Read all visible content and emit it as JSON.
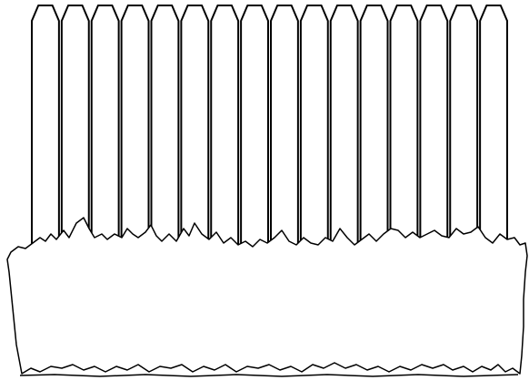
{
  "scene": {
    "subject": "picket-fence-with-bushes",
    "picket_count": 16,
    "colors": {
      "background": "#ffffff",
      "outline": "#000000",
      "fill": "#ffffff"
    }
  }
}
